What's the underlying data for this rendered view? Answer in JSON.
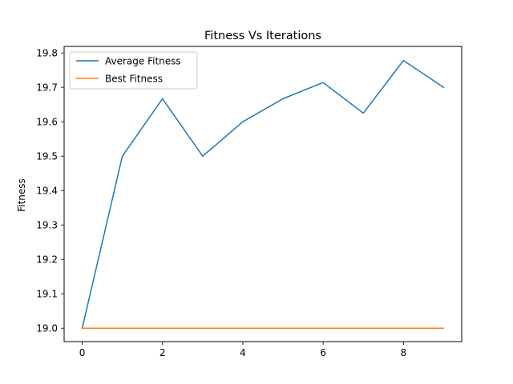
{
  "chart_data": {
    "type": "line",
    "title": "Fitness Vs Iterations",
    "xlabel": "",
    "ylabel": "Fitness",
    "xlim": [
      -0.45,
      9.45
    ],
    "ylim": [
      18.961,
      19.819
    ],
    "x_ticks": [
      0,
      2,
      4,
      6,
      8
    ],
    "y_ticks": [
      19.0,
      19.1,
      19.2,
      19.3,
      19.4,
      19.5,
      19.6,
      19.7,
      19.8
    ],
    "grid": false,
    "legend_position": "top-left",
    "x": [
      0,
      1,
      2,
      3,
      4,
      5,
      6,
      7,
      8,
      9
    ],
    "series": [
      {
        "name": "Average Fitness",
        "color": "#1f77b4",
        "values": [
          19.0,
          19.5,
          19.667,
          19.5,
          19.6,
          19.667,
          19.714,
          19.625,
          19.778,
          19.7
        ]
      },
      {
        "name": "Best Fitness",
        "color": "#ff7f0e",
        "values": [
          19.0,
          19.0,
          19.0,
          19.0,
          19.0,
          19.0,
          19.0,
          19.0,
          19.0,
          19.0
        ]
      }
    ]
  }
}
